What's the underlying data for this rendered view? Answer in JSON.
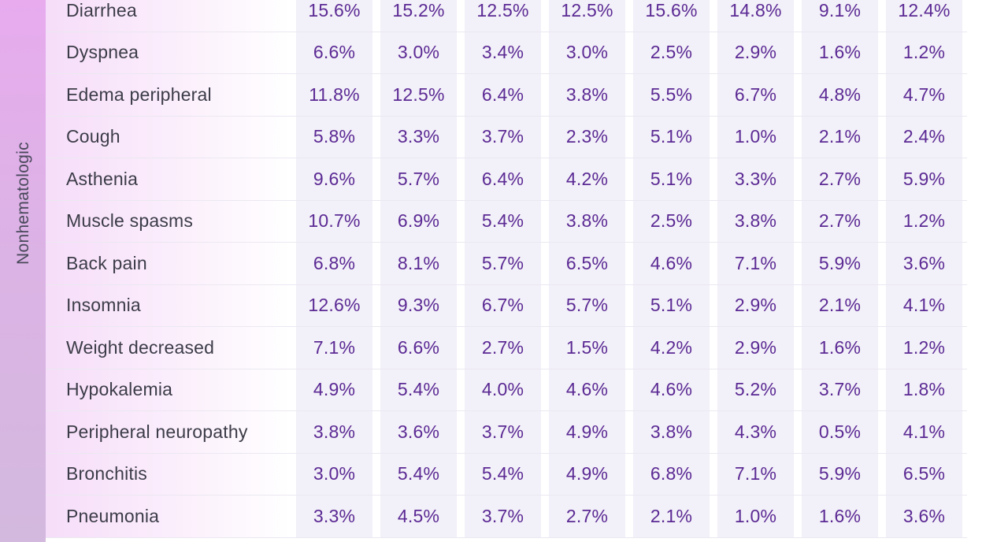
{
  "section": {
    "label": "Nonhematologic"
  },
  "rows": [
    {
      "label": "Diarrhea",
      "values": [
        "15.6%",
        "15.2%",
        "12.5%",
        "12.5%",
        "15.6%",
        "14.8%",
        "9.1%",
        "12.4%"
      ]
    },
    {
      "label": "Dyspnea",
      "values": [
        "6.6%",
        "3.0%",
        "3.4%",
        "3.0%",
        "2.5%",
        "2.9%",
        "1.6%",
        "1.2%"
      ]
    },
    {
      "label": "Edema peripheral",
      "values": [
        "11.8%",
        "12.5%",
        "6.4%",
        "3.8%",
        "5.5%",
        "6.7%",
        "4.8%",
        "4.7%"
      ]
    },
    {
      "label": "Cough",
      "values": [
        "5.8%",
        "3.3%",
        "3.7%",
        "2.3%",
        "5.1%",
        "1.0%",
        "2.1%",
        "2.4%"
      ]
    },
    {
      "label": "Asthenia",
      "values": [
        "9.6%",
        "5.7%",
        "6.4%",
        "4.2%",
        "5.1%",
        "3.3%",
        "2.7%",
        "5.9%"
      ]
    },
    {
      "label": "Muscle spasms",
      "values": [
        "10.7%",
        "6.9%",
        "5.4%",
        "3.8%",
        "2.5%",
        "3.8%",
        "2.7%",
        "1.2%"
      ]
    },
    {
      "label": "Back pain",
      "values": [
        "6.8%",
        "8.1%",
        "5.7%",
        "6.5%",
        "4.6%",
        "7.1%",
        "5.9%",
        "3.6%"
      ]
    },
    {
      "label": "Insomnia",
      "values": [
        "12.6%",
        "9.3%",
        "6.7%",
        "5.7%",
        "5.1%",
        "2.9%",
        "2.1%",
        "4.1%"
      ]
    },
    {
      "label": "Weight decreased",
      "values": [
        "7.1%",
        "6.6%",
        "2.7%",
        "1.5%",
        "4.2%",
        "2.9%",
        "1.6%",
        "1.2%"
      ]
    },
    {
      "label": "Hypokalemia",
      "values": [
        "4.9%",
        "5.4%",
        "4.0%",
        "4.6%",
        "4.6%",
        "5.2%",
        "3.7%",
        "1.8%"
      ]
    },
    {
      "label": "Peripheral neuropathy",
      "values": [
        "3.8%",
        "3.6%",
        "3.7%",
        "4.9%",
        "3.8%",
        "4.3%",
        "0.5%",
        "4.1%"
      ]
    },
    {
      "label": "Bronchitis",
      "values": [
        "3.0%",
        "5.4%",
        "5.4%",
        "4.9%",
        "6.8%",
        "7.1%",
        "5.9%",
        "6.5%"
      ]
    },
    {
      "label": "Pneumonia",
      "values": [
        "3.3%",
        "4.5%",
        "3.7%",
        "2.7%",
        "2.1%",
        "1.0%",
        "1.6%",
        "3.6%"
      ]
    }
  ],
  "colors": {
    "value_text": "#5b2a94",
    "label_text": "#3c3c48",
    "section_band": "#e7abee",
    "cell_background": "#f2f0f8"
  }
}
